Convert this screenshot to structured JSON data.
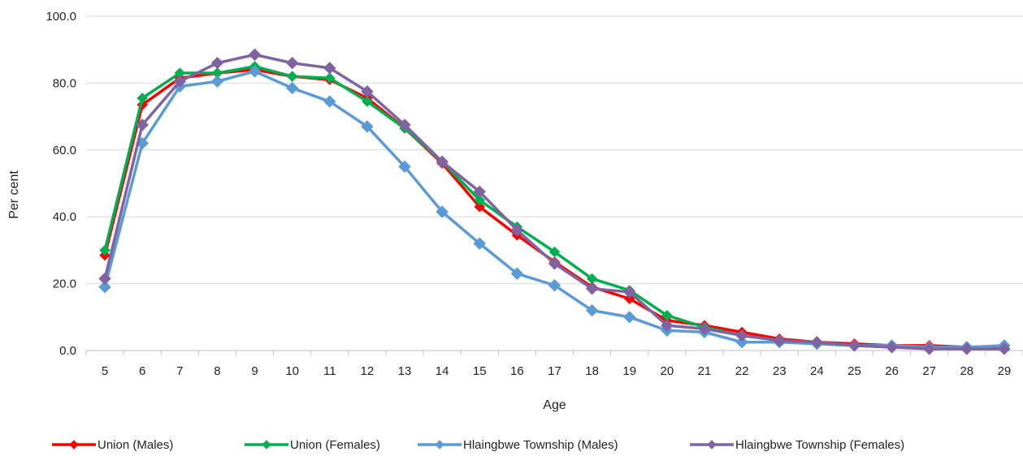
{
  "chart_data": {
    "type": "line",
    "xlabel": "Age",
    "ylabel": "Per cent",
    "ylim": [
      0,
      100
    ],
    "yticks": [
      "0.0",
      "20.0",
      "40.0",
      "60.0",
      "80.0",
      "100.0"
    ],
    "grid": "horizontal",
    "legend_position": "bottom",
    "categories": [
      "5",
      "6",
      "7",
      "8",
      "9",
      "10",
      "11",
      "12",
      "13",
      "14",
      "15",
      "16",
      "17",
      "18",
      "19",
      "20",
      "21",
      "22",
      "23",
      "24",
      "25",
      "26",
      "27",
      "28",
      "29"
    ],
    "series": [
      {
        "name": "Union (Males)",
        "color": "#ff0000",
        "marker_size": 6,
        "values": [
          28.5,
          73.5,
          81.5,
          83.0,
          84.0,
          82.0,
          81.0,
          75.5,
          66.5,
          56.0,
          43.0,
          34.5,
          26.5,
          19.0,
          15.5,
          9.0,
          7.5,
          5.5,
          3.5,
          2.5,
          2.0,
          1.5,
          1.5,
          1.0,
          0.5
        ]
      },
      {
        "name": "Union (Females)",
        "color": "#00b050",
        "marker_size": 6,
        "values": [
          30.0,
          75.5,
          83.0,
          83.0,
          85.0,
          82.0,
          81.5,
          74.5,
          66.5,
          56.5,
          45.0,
          37.0,
          29.5,
          21.5,
          18.0,
          10.5,
          7.0,
          4.5,
          3.0,
          2.0,
          1.5,
          1.0,
          1.0,
          0.5,
          0.5
        ]
      },
      {
        "name": "Hlaingbwe Township (Males)",
        "color": "#5b9bd5",
        "marker_size": 7,
        "values": [
          19.0,
          62.0,
          79.0,
          80.5,
          83.5,
          78.5,
          74.5,
          67.0,
          55.0,
          41.5,
          32.0,
          23.0,
          19.5,
          12.0,
          10.0,
          6.0,
          5.5,
          2.5,
          2.5,
          2.0,
          1.5,
          1.5,
          1.0,
          1.0,
          1.5
        ]
      },
      {
        "name": "Hlaingbwe Township (Females)",
        "color": "#8064a2",
        "marker_size": 7,
        "values": [
          21.5,
          67.5,
          80.5,
          86.0,
          88.5,
          86.0,
          84.5,
          77.5,
          67.5,
          56.5,
          47.5,
          36.0,
          26.0,
          18.5,
          17.5,
          7.5,
          6.5,
          4.5,
          3.0,
          2.5,
          1.5,
          1.0,
          0.5,
          0.5,
          0.5
        ]
      }
    ]
  }
}
